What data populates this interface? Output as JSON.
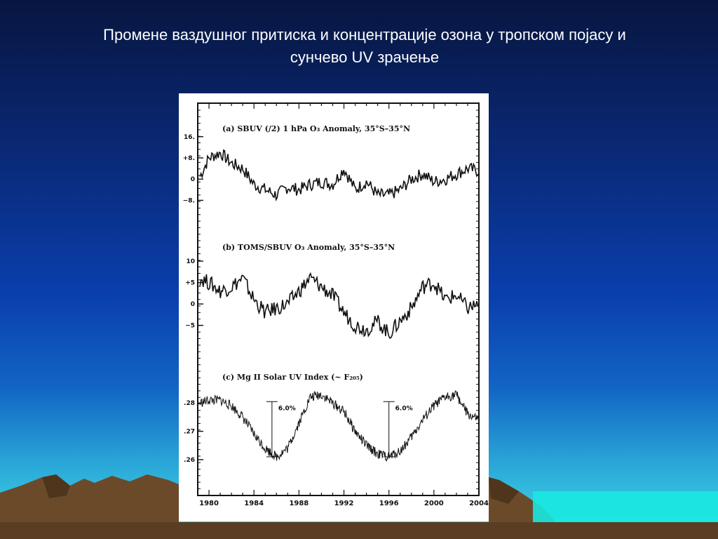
{
  "slide": {
    "title_line1": "Промене ваздушног притиска и концентрације озона у тропском појасу и",
    "title_line2": "сунчево UV зрачење"
  },
  "colors": {
    "background_top": "#071640",
    "background_bottom": "#40e0e6",
    "title_text": "#ffffff",
    "line": "#111111"
  },
  "chart_data": {
    "type": "line",
    "x_ticks": [
      "1980",
      "1984",
      "1988",
      "1992",
      "1996",
      "2000",
      "2004"
    ],
    "xlim": [
      1979,
      2004
    ],
    "panels": [
      {
        "title": "(a) SBUV (/2) 1 hPa O₃ Anomaly, 35°S–35°N",
        "y_ticks": [
          "16.",
          "+8.",
          "0",
          "−8."
        ],
        "ylim": [
          -10,
          17
        ],
        "tick_values": [
          16,
          8,
          0,
          -8
        ],
        "x": [
          1979.2,
          1980,
          1981,
          1982,
          1983,
          1984,
          1985,
          1986,
          1987,
          1988,
          1989,
          1990,
          1991,
          1992,
          1993,
          1994,
          1995,
          1996,
          1997,
          1998,
          1999,
          2000,
          2001,
          2002,
          2003,
          2004
        ],
        "y": [
          1,
          8,
          10,
          6,
          4,
          -2,
          -4,
          -6,
          -3,
          -4,
          -2,
          -1,
          -2,
          4,
          -4,
          -1,
          -6,
          -6,
          -4,
          0,
          2,
          -1,
          0,
          2,
          4,
          3
        ]
      },
      {
        "title": "(b) TOMS/SBUV O₃ Anomaly, 35°S–35°N",
        "y_ticks": [
          "10",
          "+5",
          "0",
          "−5"
        ],
        "ylim": [
          -9,
          11
        ],
        "tick_values": [
          10,
          5,
          0,
          -5
        ],
        "x": [
          1979.2,
          1980,
          1981,
          1982,
          1983,
          1984,
          1985,
          1986,
          1987,
          1988,
          1989,
          1990,
          1991,
          1992,
          1993,
          1994,
          1995,
          1996,
          1997,
          1998,
          1999,
          2000,
          2001,
          2002,
          2003,
          2004
        ],
        "y": [
          6,
          5,
          3,
          4,
          6,
          1,
          -2,
          -1,
          0,
          3,
          6,
          4,
          2,
          -2,
          -5,
          -6,
          -4,
          -7,
          -4,
          -1,
          4,
          5,
          1,
          2,
          -1,
          0
        ]
      },
      {
        "title": "(c) Mg II Solar UV Index (~ F₂₀₅)",
        "y_ticks": [
          ".28",
          ".27",
          ".26"
        ],
        "ylim": [
          0.2575,
          0.2865
        ],
        "tick_values": [
          0.28,
          0.27,
          0.26
        ],
        "x": [
          1979.2,
          1980,
          1981,
          1982,
          1983,
          1984,
          1985,
          1986,
          1987,
          1988,
          1989,
          1990,
          1991,
          1992,
          1993,
          1994,
          1995,
          1996,
          1997,
          1998,
          1999,
          2000,
          2001,
          2002,
          2003,
          2004
        ],
        "y": [
          0.28,
          0.281,
          0.281,
          0.279,
          0.275,
          0.269,
          0.264,
          0.261,
          0.264,
          0.273,
          0.282,
          0.283,
          0.28,
          0.277,
          0.27,
          0.265,
          0.262,
          0.261,
          0.263,
          0.268,
          0.274,
          0.279,
          0.282,
          0.283,
          0.276,
          0.274
        ],
        "annotations": [
          "6.0%",
          "6.0%"
        ]
      }
    ]
  }
}
